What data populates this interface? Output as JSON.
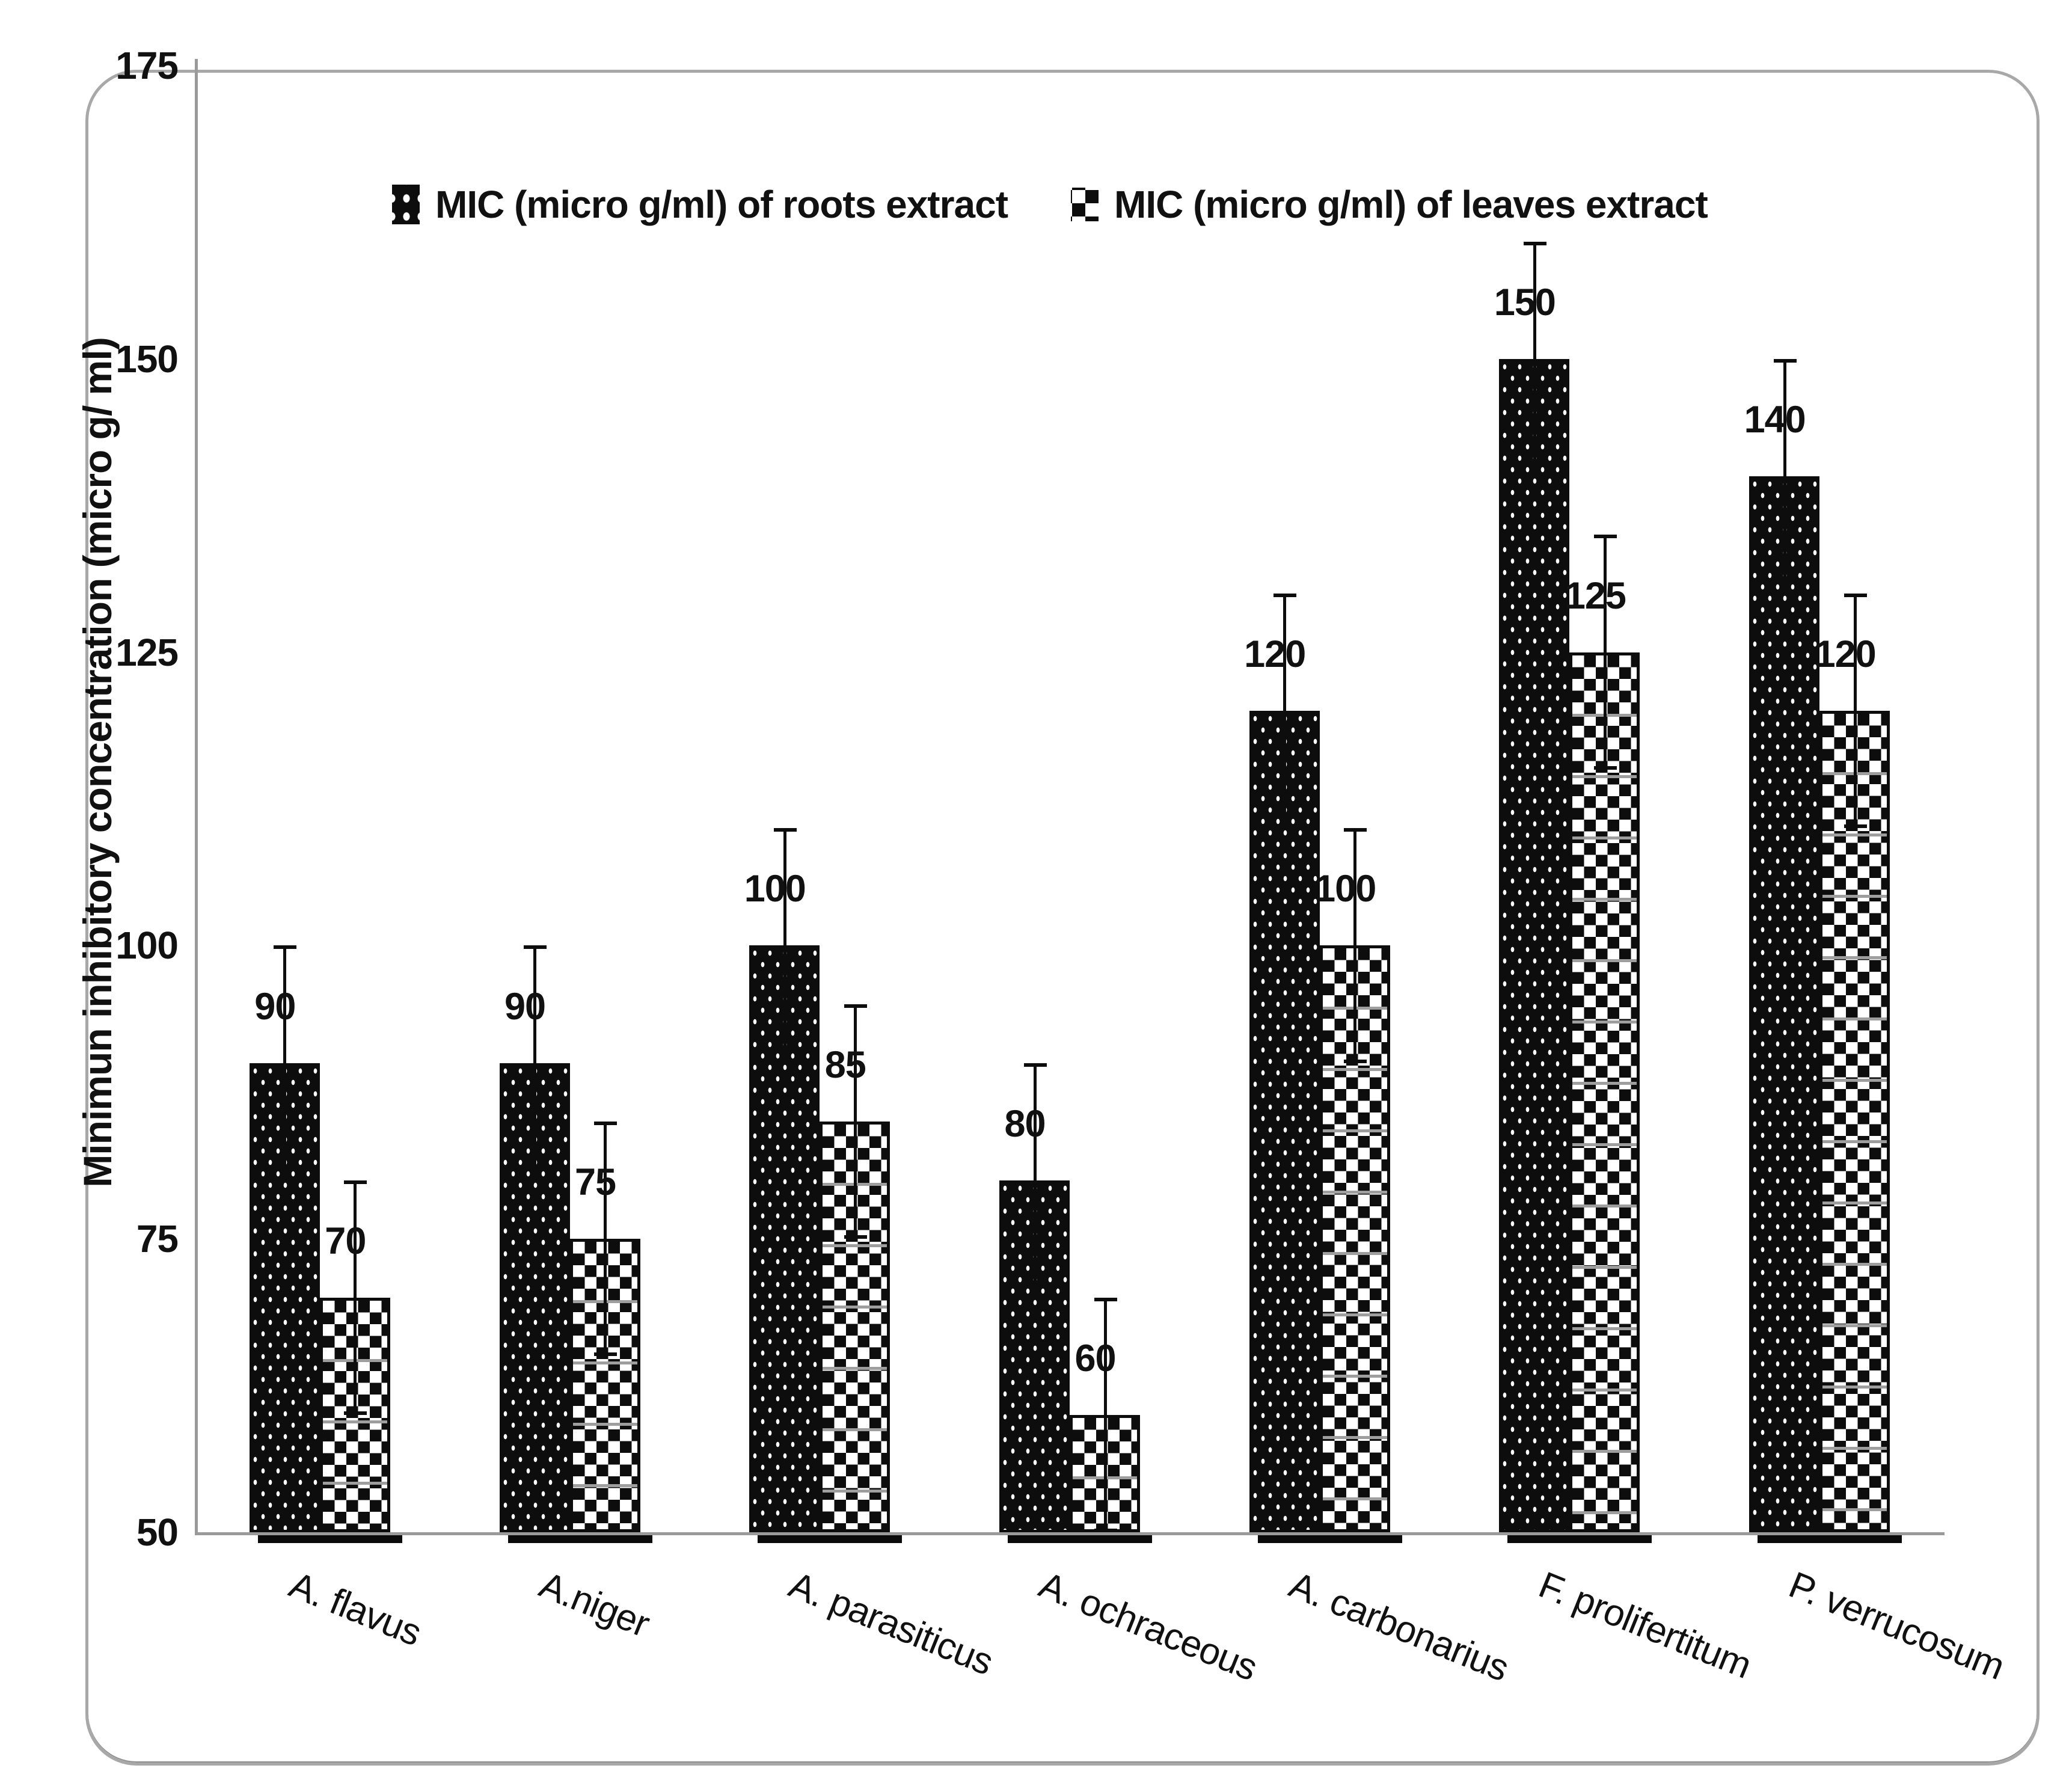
{
  "chart_data": {
    "type": "bar",
    "title": "",
    "categories": [
      "A. flavus",
      "A.niger",
      "A. parasiticus",
      "A. ochraceous",
      "A. carbonarius",
      "F. prolifertitum",
      "P. verrucosum"
    ],
    "series": [
      {
        "name": "MIC (micro g/ml) of roots extract",
        "pattern": "dots",
        "values": [
          90,
          90,
          100,
          80,
          120,
          150,
          140
        ],
        "error_bar": 10
      },
      {
        "name": "MIC (micro g/ml) of leaves extract",
        "pattern": "checker",
        "values": [
          70,
          75,
          85,
          60,
          100,
          125,
          120
        ],
        "error_bar": 10
      }
    ],
    "xlabel": "",
    "ylabel": "Minimun inhibitory concentration (micro g/ ml)",
    "ylim": [
      50,
      175
    ],
    "yticks": [
      50,
      75,
      100,
      125,
      150,
      175
    ],
    "grid": false,
    "legend_position": "top-center",
    "data_labels": true,
    "error_bars_symmetric": true
  },
  "colors": {
    "bar_fill": "#0d0d0d",
    "bar_pattern_detail": "#ffffff",
    "checker_gridline": "#9e9e9e",
    "axis_line": "#9a9a9a",
    "panel_border": "#a8a8a8",
    "text": "#111111"
  }
}
